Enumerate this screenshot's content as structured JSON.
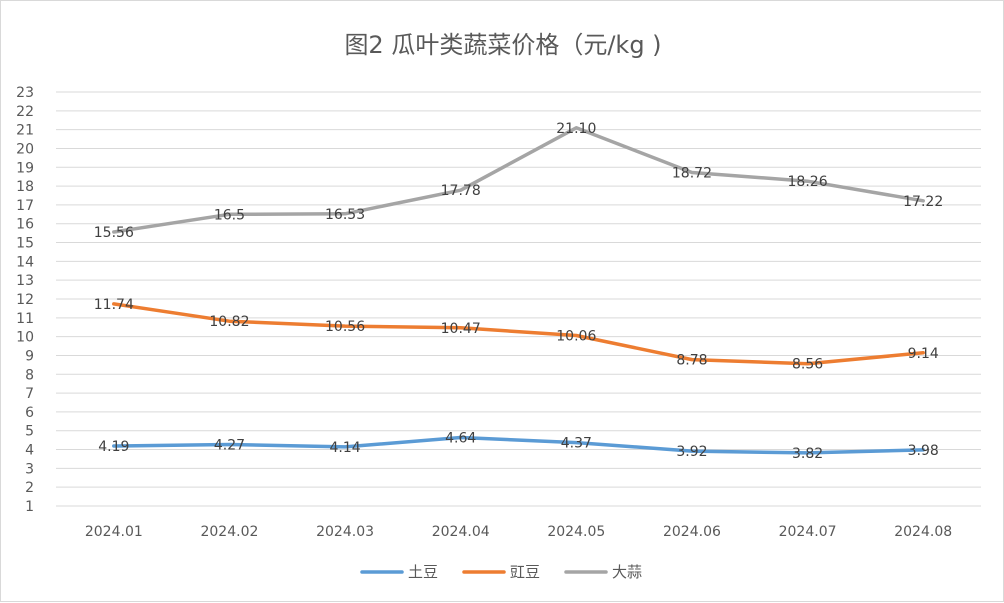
{
  "chart_data": {
    "type": "line",
    "title": "图2  瓜叶类蔬菜价格（元/kg )",
    "xlabel": "",
    "ylabel": "",
    "categories": [
      "2024.01",
      "2024.02",
      "2024.03",
      "2024.04",
      "2024.05",
      "2024.06",
      "2024.07",
      "2024.08"
    ],
    "ylim": [
      1,
      23
    ],
    "y_ticks": [
      1,
      2,
      3,
      4,
      5,
      6,
      7,
      8,
      9,
      10,
      11,
      12,
      13,
      14,
      15,
      16,
      17,
      18,
      19,
      20,
      21,
      22,
      23
    ],
    "grid": true,
    "legend_position": "bottom",
    "series": [
      {
        "name": "土豆",
        "color": "#5B9BD5",
        "values": [
          4.19,
          4.27,
          4.14,
          4.64,
          4.37,
          3.92,
          3.82,
          3.98
        ],
        "labels": [
          "4.19",
          "4.27",
          "4.14",
          "4.64",
          "4.37",
          "3.92",
          "3.82",
          "3.98"
        ]
      },
      {
        "name": "豇豆",
        "color": "#ED7D31",
        "values": [
          11.74,
          10.82,
          10.56,
          10.47,
          10.06,
          8.78,
          8.56,
          9.14
        ],
        "labels": [
          "11.74",
          "10.82",
          "10.56",
          "10.47",
          "10.06",
          "8.78",
          "8.56",
          "9.14"
        ]
      },
      {
        "name": "大蒜",
        "color": "#A5A5A5",
        "values": [
          15.56,
          16.5,
          16.53,
          17.78,
          21.1,
          18.72,
          18.26,
          17.22
        ],
        "labels": [
          "15.56",
          "16.5",
          "16.53",
          "17.78",
          "21.10",
          "18.72",
          "18.26",
          "17.22"
        ]
      }
    ]
  }
}
